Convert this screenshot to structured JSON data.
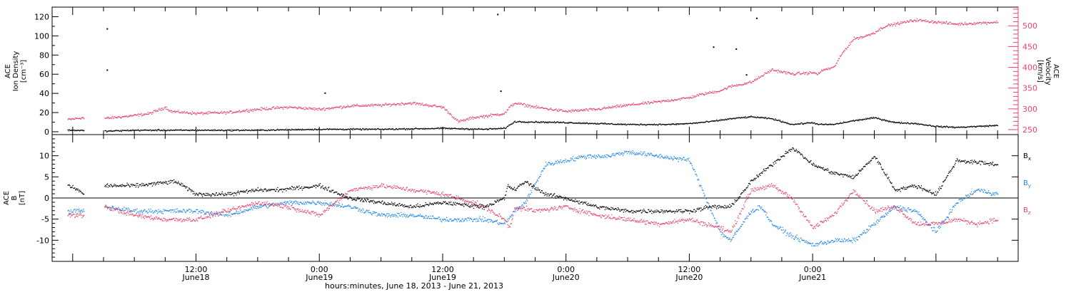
{
  "chart_data": [
    {
      "type": "scatter",
      "panel": "ion-density-velocity",
      "ylabel": [
        "ACE",
        "Ion Density",
        "[cm⁻³]"
      ],
      "y2label": [
        "ACE",
        "Velocity",
        "[km/s]"
      ],
      "ylim": [
        -3,
        130
      ],
      "y2lim": [
        238,
        545
      ],
      "yticks": [
        0,
        20,
        40,
        60,
        80,
        100,
        120
      ],
      "y2ticks": [
        250,
        300,
        350,
        400,
        450,
        500
      ],
      "colors": {
        "density": "#000000",
        "velocity": "#e8436e"
      },
      "series": [
        {
          "axis": "left",
          "color": "#000000",
          "x": [
            -0.5,
            0,
            3,
            3.1,
            6,
            12,
            18,
            24,
            30,
            36,
            40,
            42,
            43,
            48,
            54,
            58,
            60,
            62,
            64,
            66,
            68,
            70,
            72,
            72.5,
            74,
            76,
            78,
            80,
            82,
            84,
            86,
            90
          ],
          "values": [
            2,
            2,
            1,
            1,
            2,
            2,
            2,
            3,
            3,
            4,
            3,
            4,
            11,
            10,
            8,
            8,
            9,
            11,
            14,
            16,
            14,
            8,
            10,
            8,
            8,
            12,
            15,
            10,
            9,
            6,
            5,
            7
          ],
          "outliers": [
            {
              "x": 3.3,
              "y": 108
            },
            {
              "x": 3.3,
              "y": 65
            },
            {
              "x": 24.5,
              "y": 41
            },
            {
              "x": 41.3,
              "y": 123
            },
            {
              "x": 41.6,
              "y": 43
            },
            {
              "x": 62.3,
              "y": 89
            },
            {
              "x": 64.5,
              "y": 87
            },
            {
              "x": 66.5,
              "y": 119
            },
            {
              "x": 65.5,
              "y": 60
            }
          ]
        },
        {
          "axis": "right",
          "color": "#e8436e",
          "x": [
            -0.5,
            1,
            1.2,
            3.1,
            4,
            6,
            7.5,
            9,
            9.5,
            12,
            15,
            18,
            21,
            24,
            27,
            30,
            33,
            36,
            37.5,
            39,
            40,
            42,
            42.5,
            43,
            45,
            48,
            51,
            54,
            57,
            60,
            61,
            62,
            63,
            64,
            66,
            67,
            68,
            70,
            72,
            72.5,
            73,
            74,
            75,
            76,
            77,
            78,
            79,
            80,
            82,
            84,
            86,
            90
          ],
          "values": [
            275,
            280,
            272,
            278,
            280,
            285,
            290,
            305,
            295,
            290,
            292,
            300,
            305,
            300,
            308,
            310,
            315,
            305,
            270,
            280,
            283,
            290,
            305,
            315,
            305,
            295,
            300,
            310,
            318,
            328,
            335,
            340,
            345,
            355,
            365,
            380,
            395,
            385,
            388,
            385,
            395,
            400,
            440,
            470,
            475,
            485,
            500,
            505,
            515,
            510,
            505,
            510
          ]
        }
      ]
    },
    {
      "type": "scatter",
      "panel": "imf",
      "ylabel": [
        "ACE",
        "B",
        "[nT]"
      ],
      "ylim": [
        -15,
        15
      ],
      "yticks": [
        -10,
        -5,
        0,
        5,
        10
      ],
      "zero_line": true,
      "legend": {
        "placement": "right",
        "entries": [
          "B",
          "B",
          "B"
        ],
        "subscripts": [
          "x",
          "y",
          "z"
        ]
      },
      "series": [
        {
          "color": "#000000",
          "x": [
            -0.5,
            0.5,
            1,
            3.1,
            6,
            10,
            12,
            15,
            18,
            20,
            24,
            27,
            30,
            33,
            36,
            40,
            42,
            42.3,
            43,
            44,
            46,
            48,
            51,
            54,
            57,
            60,
            62,
            64,
            66,
            68,
            70,
            71,
            72,
            74,
            76,
            78,
            80,
            82,
            84,
            86,
            90
          ],
          "values": [
            3,
            2,
            1,
            3,
            3,
            4,
            1,
            1,
            2,
            2,
            3,
            0,
            -1,
            -2,
            -1,
            -2,
            0,
            3,
            2,
            4,
            1,
            0,
            -2,
            -3,
            -3,
            -3,
            -2,
            -2,
            4,
            8,
            12,
            10,
            8,
            6,
            5,
            10,
            2,
            3,
            1,
            9,
            8
          ]
        },
        {
          "color": "#1f86e6",
          "x": [
            -0.5,
            1,
            3.1,
            6,
            9,
            12,
            15,
            18,
            21,
            24,
            27,
            30,
            33,
            36,
            37,
            40,
            42,
            43,
            44,
            46,
            48,
            50,
            52,
            54,
            57,
            60,
            63,
            64,
            66,
            67,
            68,
            70,
            72,
            74,
            76,
            78,
            80,
            82,
            84,
            86,
            88,
            90
          ],
          "values": [
            -3,
            -3,
            -2,
            -3,
            -3,
            -3,
            -4,
            -2,
            -1,
            -1,
            -2,
            -4,
            -4,
            -5,
            -5,
            -5,
            -6,
            -3,
            -1,
            8,
            9,
            10,
            10,
            11,
            10,
            9,
            -8,
            -10,
            -3,
            -2,
            -6,
            -9,
            -11,
            -10,
            -10,
            -6,
            -2,
            -3,
            -8,
            -1,
            2,
            1
          ]
        },
        {
          "color": "#e8436e",
          "x": [
            -0.5,
            1,
            3.1,
            6,
            9,
            12,
            15,
            18,
            21,
            24,
            27,
            30,
            33,
            36,
            39,
            40,
            42,
            42.5,
            43,
            45,
            48,
            51,
            54,
            57,
            60,
            63,
            64,
            66,
            68,
            70,
            72,
            74,
            76,
            78,
            80,
            82,
            84,
            86,
            88,
            90
          ],
          "values": [
            -4,
            -4,
            -2,
            -4,
            -5,
            -5,
            -3,
            -1,
            -2,
            -4,
            2,
            3,
            2,
            1,
            -1,
            -2,
            -5,
            -7,
            -2,
            -3,
            -2,
            -4,
            -5,
            -6,
            -5,
            -7,
            -8,
            2,
            3,
            0,
            -7,
            -4,
            2,
            -3,
            -2,
            -6,
            -6,
            -5,
            -6,
            -5
          ]
        }
      ]
    }
  ],
  "x_axis": {
    "label": "hours:minutes, June 18, 2013 - June 21, 2013",
    "xlim": [
      -2,
      92
    ],
    "major_ticks": [
      {
        "x": 12,
        "time": "12:00",
        "date": "June18"
      },
      {
        "x": 24,
        "time": "0:00",
        "date": "June19"
      },
      {
        "x": 36,
        "time": "12:00",
        "date": "June19"
      },
      {
        "x": 48,
        "time": "0:00",
        "date": "June20"
      },
      {
        "x": 60,
        "time": "12:00",
        "date": "June20"
      },
      {
        "x": 72,
        "time": "0:00",
        "date": "June21"
      }
    ],
    "minor_step_hours": 3
  }
}
